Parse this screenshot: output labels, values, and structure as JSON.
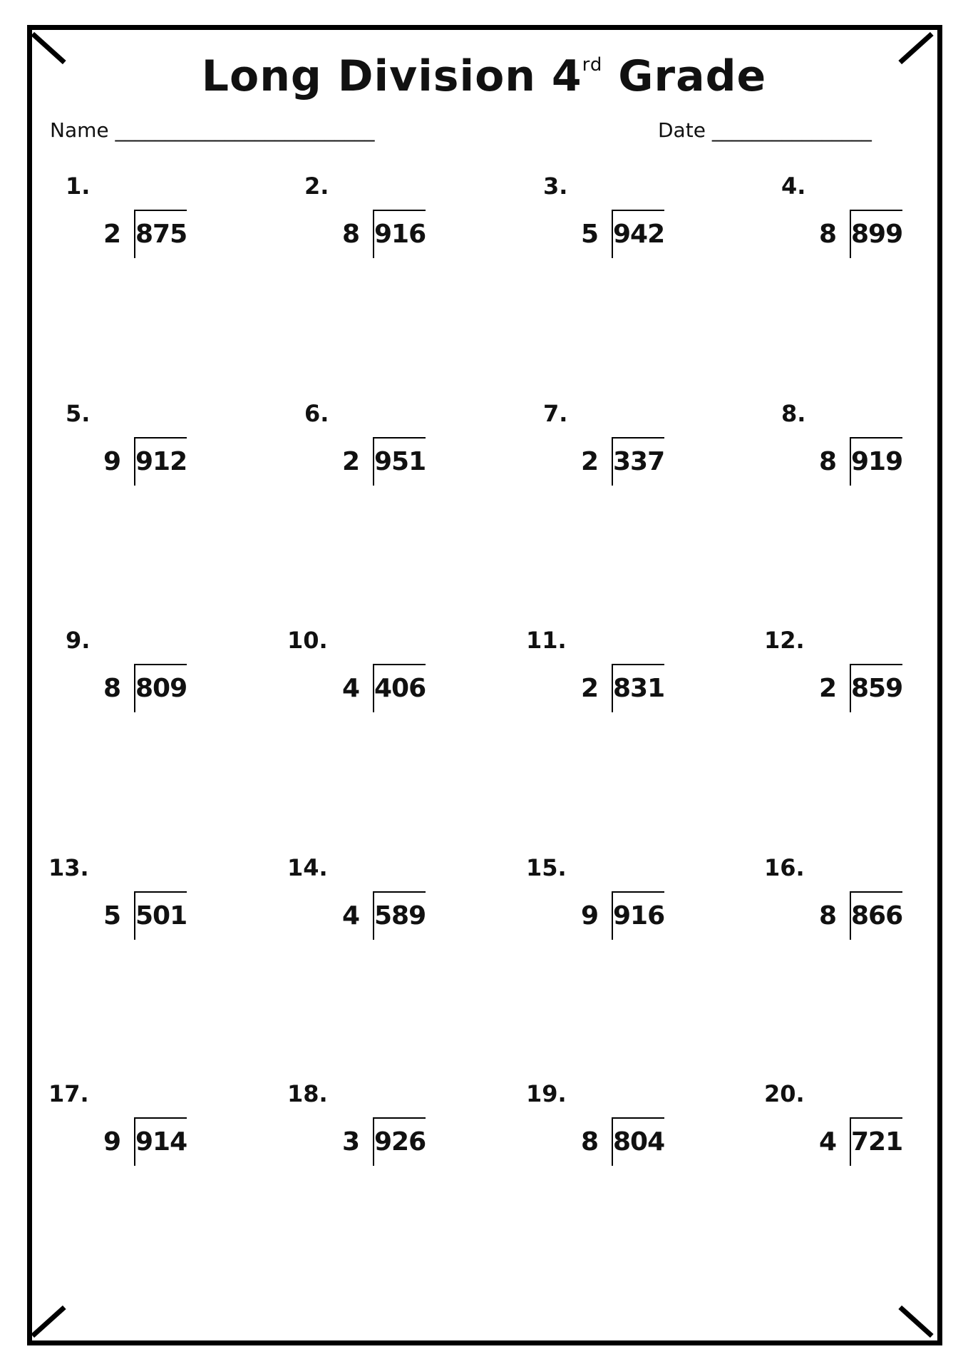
{
  "title": {
    "main": "Long Division 4",
    "sup": "rd",
    "end": " Grade"
  },
  "name_label": "Name",
  "name_line": "__________________________",
  "date_label": "Date",
  "date_line": "________________",
  "problems": [
    {
      "label": "1.",
      "divisor": "2",
      "dividend": "875"
    },
    {
      "label": "2.",
      "divisor": "8",
      "dividend": "916"
    },
    {
      "label": "3.",
      "divisor": "5",
      "dividend": "942"
    },
    {
      "label": "4.",
      "divisor": "8",
      "dividend": "899"
    },
    {
      "label": "5.",
      "divisor": "9",
      "dividend": "912"
    },
    {
      "label": "6.",
      "divisor": "2",
      "dividend": "951"
    },
    {
      "label": "7.",
      "divisor": "2",
      "dividend": "337"
    },
    {
      "label": "8.",
      "divisor": "8",
      "dividend": "919"
    },
    {
      "label": "9.",
      "divisor": "8",
      "dividend": "809"
    },
    {
      "label": "10.",
      "divisor": "4",
      "dividend": "406"
    },
    {
      "label": "11.",
      "divisor": "2",
      "dividend": "831"
    },
    {
      "label": "12.",
      "divisor": "2",
      "dividend": "859"
    },
    {
      "label": "13.",
      "divisor": "5",
      "dividend": "501"
    },
    {
      "label": "14.",
      "divisor": "4",
      "dividend": "589"
    },
    {
      "label": "15.",
      "divisor": "9",
      "dividend": "916"
    },
    {
      "label": "16.",
      "divisor": "8",
      "dividend": "866"
    },
    {
      "label": "17.",
      "divisor": "9",
      "dividend": "914"
    },
    {
      "label": "18.",
      "divisor": "3",
      "dividend": "926"
    },
    {
      "label": "19.",
      "divisor": "8",
      "dividend": "804"
    },
    {
      "label": "20.",
      "divisor": "4",
      "dividend": "721"
    }
  ]
}
